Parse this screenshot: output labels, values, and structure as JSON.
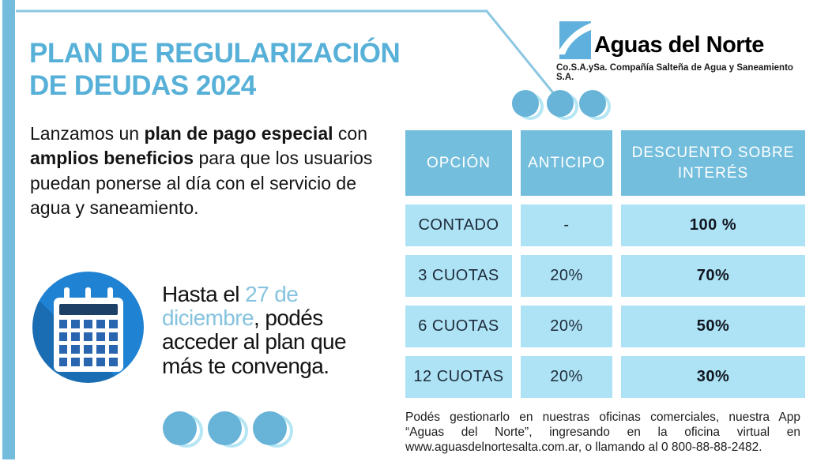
{
  "header": {
    "title_line1": "PLAN DE REGULARIZACIÓN",
    "title_line2": "DE DEUDAS 2024",
    "logo": {
      "name": "Aguas del Norte",
      "tagline": "Co.S.A.ySa. Compañía Salteña de Agua y Saneamiento S.A."
    }
  },
  "intro": {
    "segments": [
      {
        "text": "Lanzamos un ",
        "bold": false
      },
      {
        "text": "plan de pago especial",
        "bold": true
      },
      {
        "text": " con ",
        "bold": false
      },
      {
        "text": "amplios beneficios",
        "bold": true
      },
      {
        "text": " para que los usuarios puedan ponerse al día con el servicio de agua y saneamiento.",
        "bold": false
      }
    ]
  },
  "deadline": {
    "segments": [
      {
        "text": "Hasta el ",
        "highlight": false
      },
      {
        "text": "27 de diciembre",
        "highlight": true
      },
      {
        "text": ", podés acceder al plan que más te convenga.",
        "highlight": false
      }
    ]
  },
  "table": {
    "headers": [
      "OPCIÓN",
      "ANTICIPO",
      "DESCUENTO SOBRE INTERÉS"
    ],
    "rows": [
      {
        "opcion": "CONTADO",
        "anticipo": "-",
        "descuento": "100 %"
      },
      {
        "opcion": "3 CUOTAS",
        "anticipo": "20%",
        "descuento": "70%"
      },
      {
        "opcion": "6 CUOTAS",
        "anticipo": "20%",
        "descuento": "50%"
      },
      {
        "opcion": "12 CUOTAS",
        "anticipo": "20%",
        "descuento": "30%"
      }
    ]
  },
  "footer_note": {
    "lines": [
      "Podés gestionarlo en nuestras oficinas comerciales, nuestra App",
      "“Aguas del Norte”, ingresando en la oficina virtual en",
      "www.aguasdelnortesalta.com.ar, o llamando al 0 800-88-88-2482."
    ]
  },
  "colors": {
    "accent_blue": "#74bcdc",
    "title_blue": "#57b0d7",
    "table_header_blue": "#74bedd",
    "table_cell_light": "#aee3f5",
    "highlight_text_blue": "#85c3de",
    "calendar_circle_blue": "#1f82d2",
    "calendar_square_blue": "#2a66af",
    "calendar_band_navy": "#1c4066",
    "dot_fill": "#68b3d8",
    "dot_ring": "#b5e6f4"
  }
}
